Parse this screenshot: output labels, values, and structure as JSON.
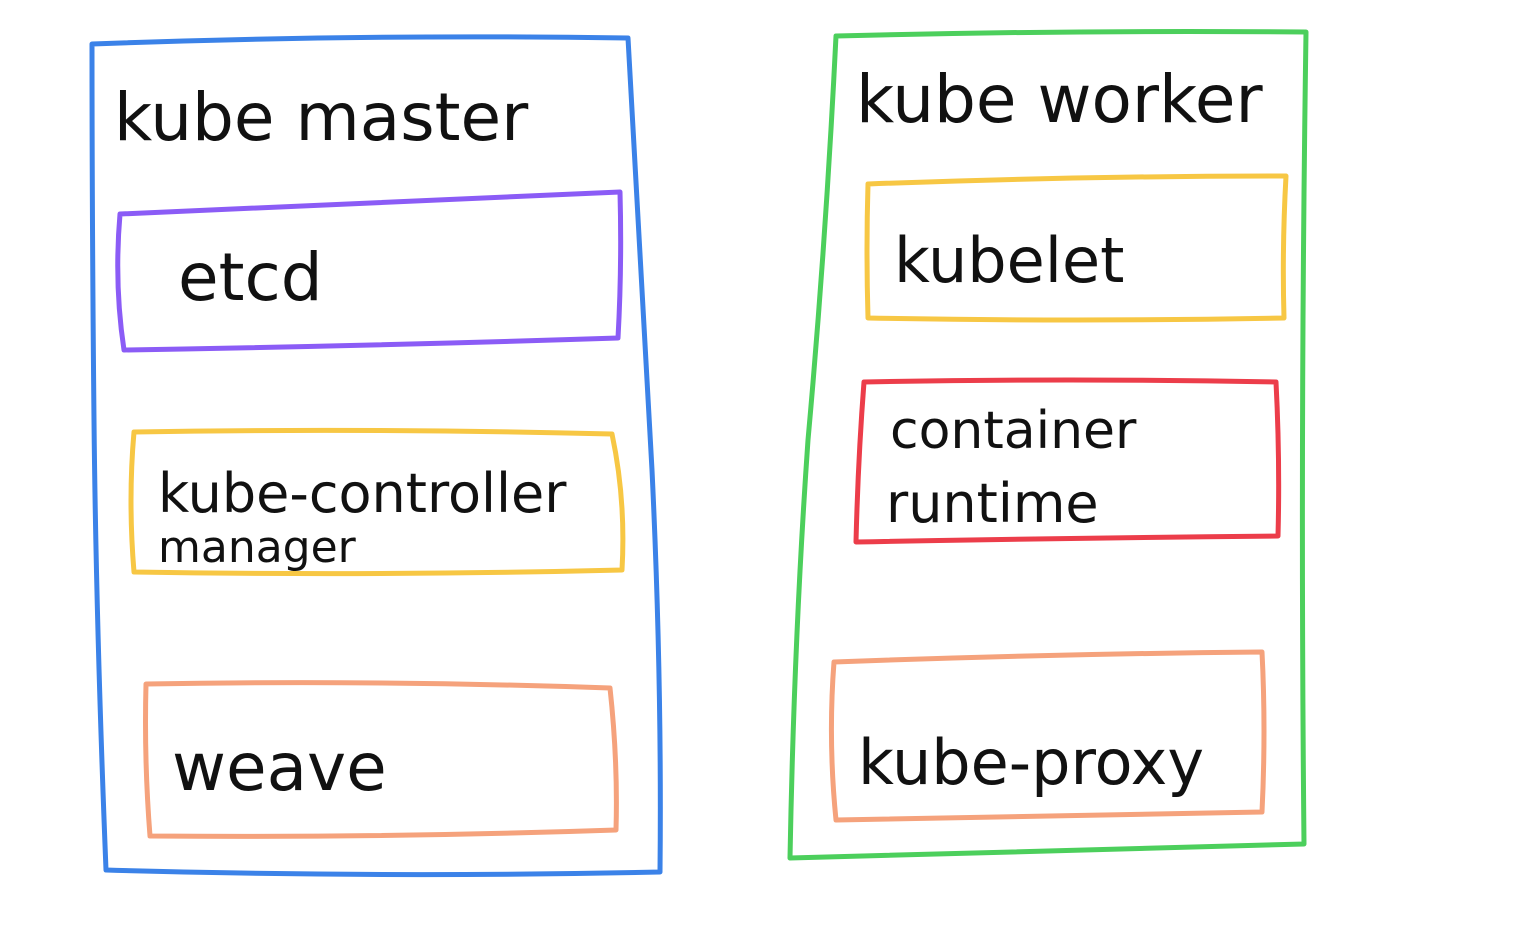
{
  "nodes": {
    "master": {
      "title": "kube master",
      "color": "#3b82e8",
      "components": [
        {
          "id": "etcd",
          "lines": [
            "etcd"
          ],
          "color": "#8b5cf6"
        },
        {
          "id": "kube-controller-manager",
          "lines": [
            "kube-controller",
            "manager"
          ],
          "color": "#f7c744"
        },
        {
          "id": "weave",
          "lines": [
            "weave"
          ],
          "color": "#f5a27c"
        }
      ]
    },
    "worker": {
      "title": "kube worker",
      "color": "#4ccf5c",
      "components": [
        {
          "id": "kubelet",
          "lines": [
            "kubelet"
          ],
          "color": "#f7c744"
        },
        {
          "id": "container-runtime",
          "lines": [
            "container",
            "runtime"
          ],
          "color": "#ec3d4a"
        },
        {
          "id": "kube-proxy",
          "lines": [
            "kube-proxy"
          ],
          "color": "#f5a27c"
        }
      ]
    }
  }
}
